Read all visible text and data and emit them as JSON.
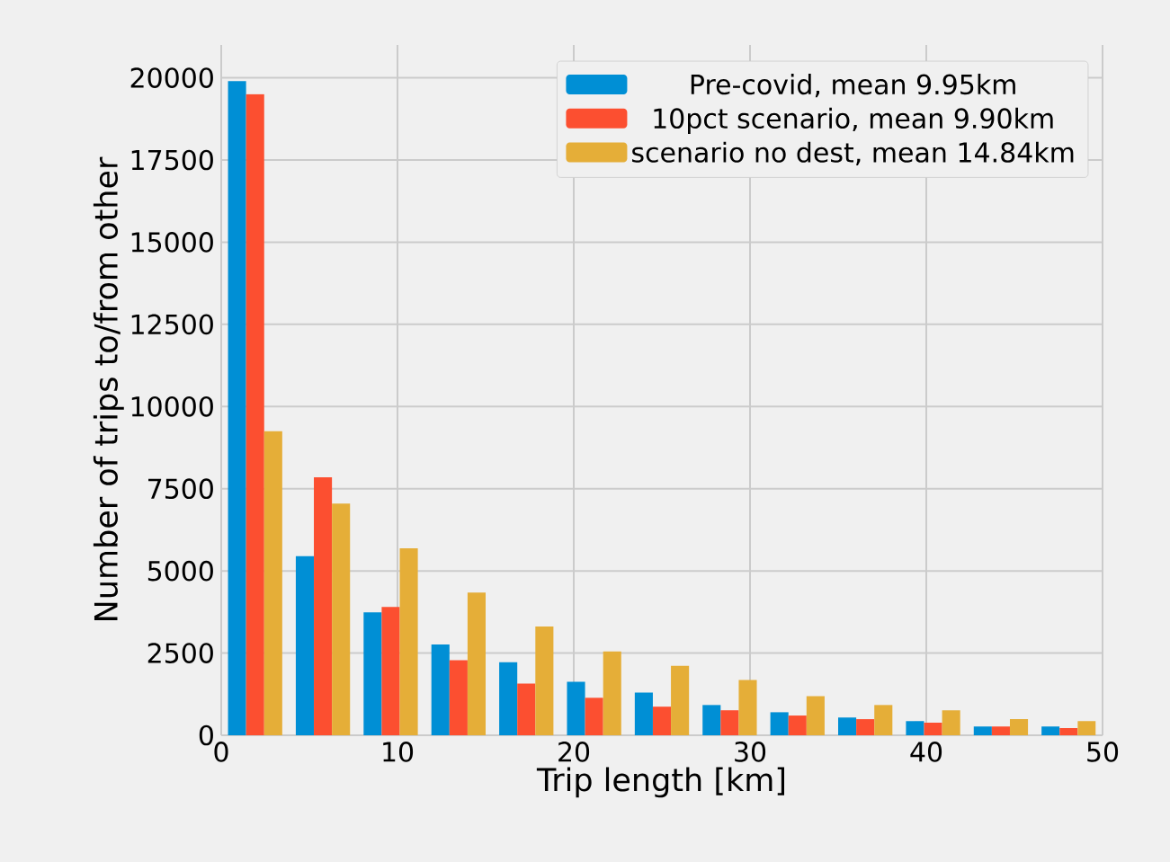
{
  "chart_data": {
    "type": "histogram",
    "xlabel": "Trip length [km]",
    "ylabel": "Number of trips to/from other",
    "bins": [
      0,
      3.846,
      7.692,
      11.538,
      15.385,
      19.231,
      23.077,
      26.923,
      30.769,
      34.615,
      38.462,
      42.308,
      46.154,
      50
    ],
    "series": [
      {
        "name": "Pre-covid, mean 9.95km",
        "color": "#008fd5",
        "values": [
          19900,
          5450,
          3740,
          2760,
          2220,
          1630,
          1300,
          920,
          700,
          540,
          430,
          270,
          270
        ]
      },
      {
        "name": "10pct scenario, mean 9.90km",
        "color": "#fc4f30",
        "values": [
          19500,
          7850,
          3900,
          2280,
          1570,
          1140,
          870,
          760,
          600,
          490,
          380,
          270,
          220
        ]
      },
      {
        "name": "scenario no dest, mean 14.84km",
        "color": "#e5ae38",
        "values": [
          9250,
          7050,
          5690,
          4340,
          3310,
          2550,
          2110,
          1680,
          1190,
          920,
          760,
          490,
          430
        ]
      }
    ],
    "xlim": [
      0,
      50
    ],
    "ylim": [
      0,
      21000
    ],
    "xticks": [
      0,
      10,
      20,
      30,
      40,
      50
    ],
    "yticks": [
      0,
      2500,
      5000,
      7500,
      10000,
      12500,
      15000,
      17500,
      20000
    ],
    "grid": true,
    "legend": "top right"
  }
}
